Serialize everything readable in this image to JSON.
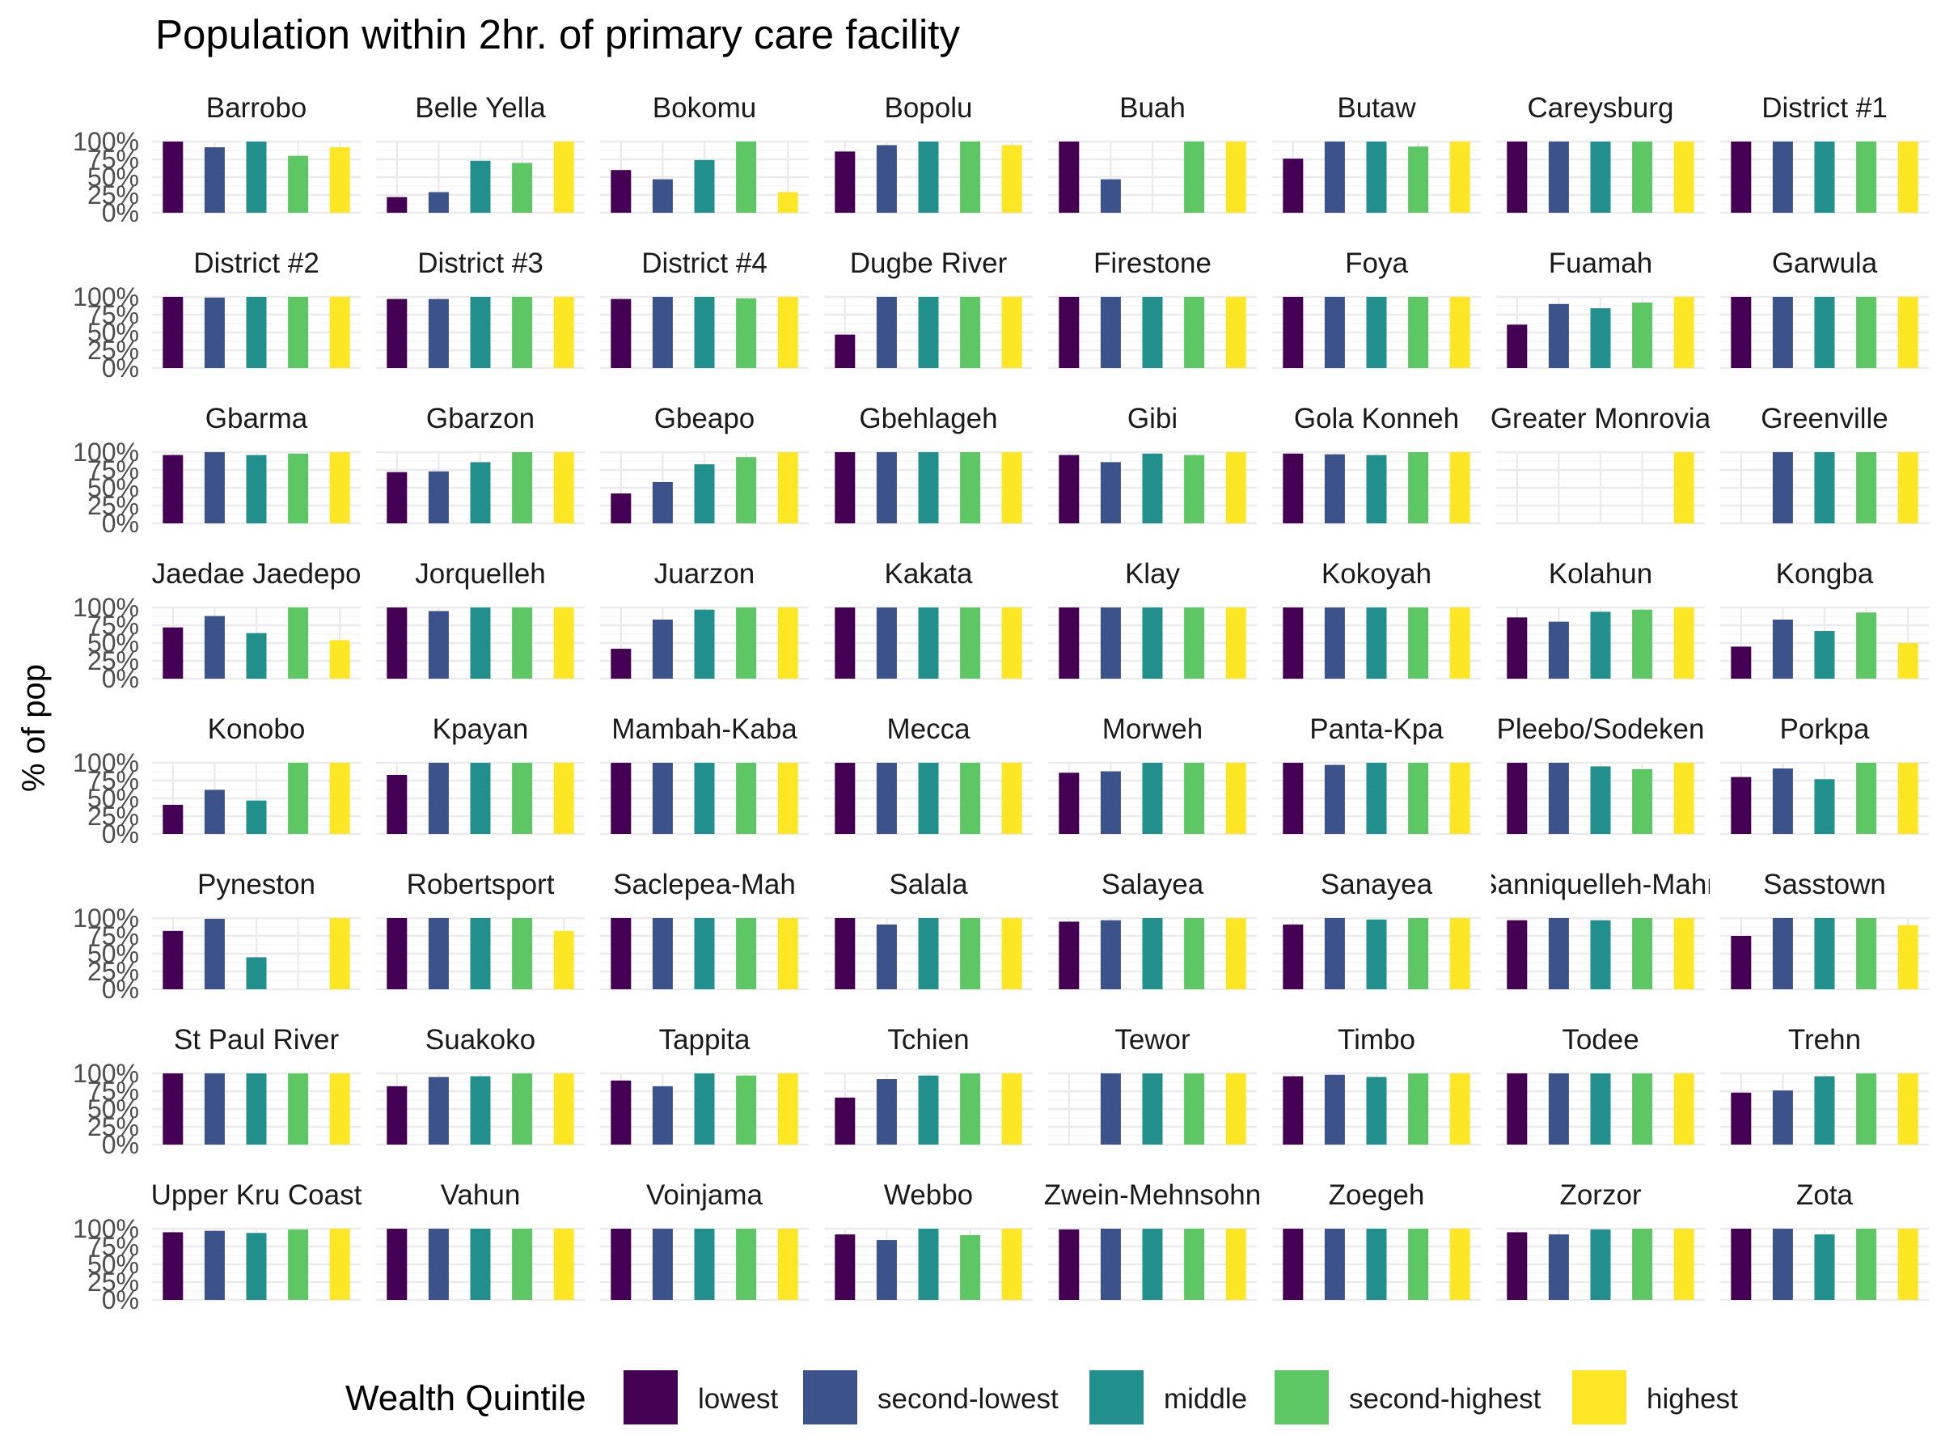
{
  "chart_data": {
    "type": "bar",
    "title": "Population within 2hr. of primary care facility",
    "ylabel": "% of pop",
    "xlabel": "",
    "ylim": [
      0,
      1
    ],
    "yticks": [
      "0%",
      "25%",
      "50%",
      "75%",
      "100%"
    ],
    "layout": "facet-grid-8x8",
    "legend": {
      "title": "Wealth Quintile",
      "position": "bottom",
      "entries": [
        {
          "name": "lowest",
          "color": "#440154"
        },
        {
          "name": "second-lowest",
          "color": "#3B528B"
        },
        {
          "name": "middle",
          "color": "#21908C"
        },
        {
          "name": "second-highest",
          "color": "#5DC863"
        },
        {
          "name": "highest",
          "color": "#FDE725"
        }
      ]
    },
    "categories": [
      "lowest",
      "second-lowest",
      "middle",
      "second-highest",
      "highest"
    ],
    "facets": [
      {
        "name": "Barrobo",
        "values": [
          1.0,
          0.92,
          1.0,
          0.8,
          0.92
        ]
      },
      {
        "name": "Belle Yella",
        "values": [
          0.22,
          0.29,
          0.73,
          0.7,
          1.0
        ]
      },
      {
        "name": "Bokomu",
        "values": [
          0.6,
          0.47,
          0.74,
          1.0,
          0.29
        ]
      },
      {
        "name": "Bopolu",
        "values": [
          0.86,
          0.95,
          1.0,
          1.0,
          0.95
        ]
      },
      {
        "name": "Buah",
        "values": [
          1.0,
          0.47,
          null,
          1.0,
          1.0
        ]
      },
      {
        "name": "Butaw",
        "values": [
          0.76,
          1.0,
          1.0,
          0.93,
          1.0
        ]
      },
      {
        "name": "Careysburg",
        "values": [
          1.0,
          1.0,
          1.0,
          1.0,
          1.0
        ]
      },
      {
        "name": "District #1",
        "values": [
          1.0,
          1.0,
          1.0,
          1.0,
          1.0
        ]
      },
      {
        "name": "District #2",
        "values": [
          1.0,
          0.99,
          1.0,
          1.0,
          1.0
        ]
      },
      {
        "name": "District #3",
        "values": [
          0.97,
          0.97,
          1.0,
          1.0,
          1.0
        ]
      },
      {
        "name": "District #4",
        "values": [
          0.97,
          1.0,
          1.0,
          0.98,
          1.0
        ]
      },
      {
        "name": "Dugbe River",
        "values": [
          0.47,
          1.0,
          1.0,
          1.0,
          1.0
        ]
      },
      {
        "name": "Firestone",
        "values": [
          1.0,
          1.0,
          1.0,
          1.0,
          1.0
        ]
      },
      {
        "name": "Foya",
        "values": [
          1.0,
          1.0,
          1.0,
          1.0,
          1.0
        ]
      },
      {
        "name": "Fuamah",
        "values": [
          0.61,
          0.9,
          0.84,
          0.92,
          1.0
        ]
      },
      {
        "name": "Garwula",
        "values": [
          1.0,
          1.0,
          1.0,
          1.0,
          1.0
        ]
      },
      {
        "name": "Gbarma",
        "values": [
          0.96,
          1.0,
          0.96,
          0.98,
          1.0
        ]
      },
      {
        "name": "Gbarzon",
        "values": [
          0.72,
          0.73,
          0.86,
          1.0,
          1.0
        ]
      },
      {
        "name": "Gbeapo",
        "values": [
          0.42,
          0.58,
          0.83,
          0.93,
          1.0
        ]
      },
      {
        "name": "Gbehlageh",
        "values": [
          1.0,
          1.0,
          1.0,
          1.0,
          1.0
        ]
      },
      {
        "name": "Gibi",
        "values": [
          0.96,
          0.86,
          0.98,
          0.96,
          1.0
        ]
      },
      {
        "name": "Gola Konneh",
        "values": [
          0.98,
          0.97,
          0.96,
          1.0,
          1.0
        ]
      },
      {
        "name": "Greater Monrovia",
        "values": [
          null,
          null,
          null,
          null,
          1.0
        ]
      },
      {
        "name": "Greenville",
        "values": [
          null,
          1.0,
          1.0,
          1.0,
          1.0
        ]
      },
      {
        "name": "Jaedae Jaedepo",
        "values": [
          0.72,
          0.88,
          0.64,
          1.0,
          0.54
        ]
      },
      {
        "name": "Jorquelleh",
        "values": [
          1.0,
          0.95,
          1.0,
          1.0,
          1.0
        ]
      },
      {
        "name": "Juarzon",
        "values": [
          0.42,
          0.83,
          0.97,
          1.0,
          1.0
        ]
      },
      {
        "name": "Kakata",
        "values": [
          1.0,
          1.0,
          1.0,
          1.0,
          1.0
        ]
      },
      {
        "name": "Klay",
        "values": [
          1.0,
          1.0,
          1.0,
          1.0,
          1.0
        ]
      },
      {
        "name": "Kokoyah",
        "values": [
          1.0,
          1.0,
          1.0,
          1.0,
          1.0
        ]
      },
      {
        "name": "Kolahun",
        "values": [
          0.86,
          0.8,
          0.94,
          0.97,
          1.0
        ]
      },
      {
        "name": "Kongba",
        "values": [
          0.45,
          0.83,
          0.67,
          0.93,
          0.5
        ]
      },
      {
        "name": "Konobo",
        "values": [
          0.41,
          0.62,
          0.47,
          1.0,
          1.0
        ]
      },
      {
        "name": "Kpayan",
        "values": [
          0.83,
          1.0,
          1.0,
          1.0,
          1.0
        ]
      },
      {
        "name": "Mambah-Kaba",
        "values": [
          1.0,
          1.0,
          1.0,
          1.0,
          1.0
        ]
      },
      {
        "name": "Mecca",
        "values": [
          1.0,
          1.0,
          1.0,
          1.0,
          1.0
        ]
      },
      {
        "name": "Morweh",
        "values": [
          0.86,
          0.88,
          1.0,
          1.0,
          1.0
        ]
      },
      {
        "name": "Panta-Kpa",
        "values": [
          1.0,
          0.97,
          1.0,
          1.0,
          1.0
        ]
      },
      {
        "name": "Pleebo/Sodeken",
        "values": [
          1.0,
          1.0,
          0.95,
          0.91,
          1.0
        ]
      },
      {
        "name": "Porkpa",
        "values": [
          0.8,
          0.92,
          0.77,
          1.0,
          1.0
        ]
      },
      {
        "name": "Pyneston",
        "values": [
          0.82,
          0.99,
          0.45,
          null,
          1.0
        ]
      },
      {
        "name": "Robertsport",
        "values": [
          1.0,
          1.0,
          1.0,
          1.0,
          0.82
        ]
      },
      {
        "name": "Saclepea-Mah",
        "values": [
          1.0,
          1.0,
          1.0,
          1.0,
          1.0
        ]
      },
      {
        "name": "Salala",
        "values": [
          1.0,
          0.91,
          1.0,
          1.0,
          1.0
        ]
      },
      {
        "name": "Salayea",
        "values": [
          0.95,
          0.97,
          1.0,
          1.0,
          1.0
        ]
      },
      {
        "name": "Sanayea",
        "values": [
          0.91,
          1.0,
          0.98,
          1.0,
          1.0
        ]
      },
      {
        "name": "Sanniquelleh-Mahn",
        "values": [
          0.97,
          1.0,
          0.97,
          1.0,
          1.0
        ]
      },
      {
        "name": "Sasstown",
        "values": [
          0.75,
          1.0,
          1.0,
          1.0,
          0.9
        ]
      },
      {
        "name": "St Paul River",
        "values": [
          1.0,
          1.0,
          1.0,
          1.0,
          1.0
        ]
      },
      {
        "name": "Suakoko",
        "values": [
          0.82,
          0.95,
          0.96,
          1.0,
          1.0
        ]
      },
      {
        "name": "Tappita",
        "values": [
          0.9,
          0.82,
          1.0,
          0.97,
          1.0
        ]
      },
      {
        "name": "Tchien",
        "values": [
          0.66,
          0.92,
          0.97,
          1.0,
          1.0
        ]
      },
      {
        "name": "Tewor",
        "values": [
          null,
          1.0,
          1.0,
          1.0,
          1.0
        ]
      },
      {
        "name": "Timbo",
        "values": [
          0.96,
          0.98,
          0.95,
          1.0,
          1.0
        ]
      },
      {
        "name": "Todee",
        "values": [
          1.0,
          1.0,
          1.0,
          1.0,
          1.0
        ]
      },
      {
        "name": "Trehn",
        "values": [
          0.73,
          0.76,
          0.96,
          1.0,
          1.0
        ]
      },
      {
        "name": "Upper Kru Coast",
        "values": [
          0.95,
          0.97,
          0.94,
          0.99,
          1.0
        ]
      },
      {
        "name": "Vahun",
        "values": [
          1.0,
          1.0,
          1.0,
          1.0,
          1.0
        ]
      },
      {
        "name": "Voinjama",
        "values": [
          1.0,
          1.0,
          1.0,
          1.0,
          1.0
        ]
      },
      {
        "name": "Webbo",
        "values": [
          0.92,
          0.84,
          1.0,
          0.91,
          1.0
        ]
      },
      {
        "name": "Zwein-Mehnsohn",
        "values": [
          0.99,
          1.0,
          1.0,
          1.0,
          1.0
        ]
      },
      {
        "name": "Zoegeh",
        "values": [
          1.0,
          1.0,
          1.0,
          1.0,
          1.0
        ]
      },
      {
        "name": "Zorzor",
        "values": [
          0.95,
          0.92,
          0.99,
          1.0,
          1.0
        ]
      },
      {
        "name": "Zota",
        "values": [
          1.0,
          1.0,
          0.92,
          1.0,
          1.0
        ]
      }
    ]
  }
}
